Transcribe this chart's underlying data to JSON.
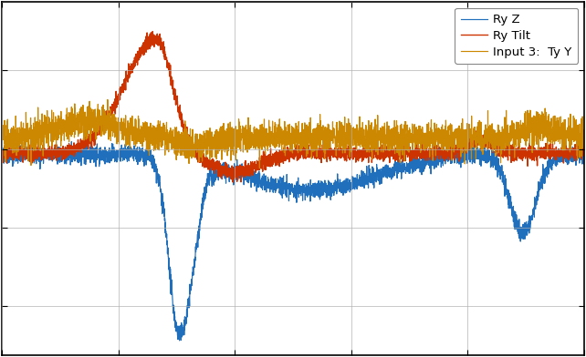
{
  "title": "",
  "legend_entries": [
    "Ry Z",
    "Ry Tilt",
    "Input 3:  Ty Y"
  ],
  "colors": {
    "ry_z": "#1f6fbd",
    "ry_tilt": "#cc3300",
    "input3_ty_y": "#cc8800"
  },
  "background_color": "#ffffff",
  "grid_color": "#b0b0b0",
  "n_points": 4000,
  "seed": 42,
  "figsize": [
    6.42,
    3.92
  ],
  "dpi": 100
}
